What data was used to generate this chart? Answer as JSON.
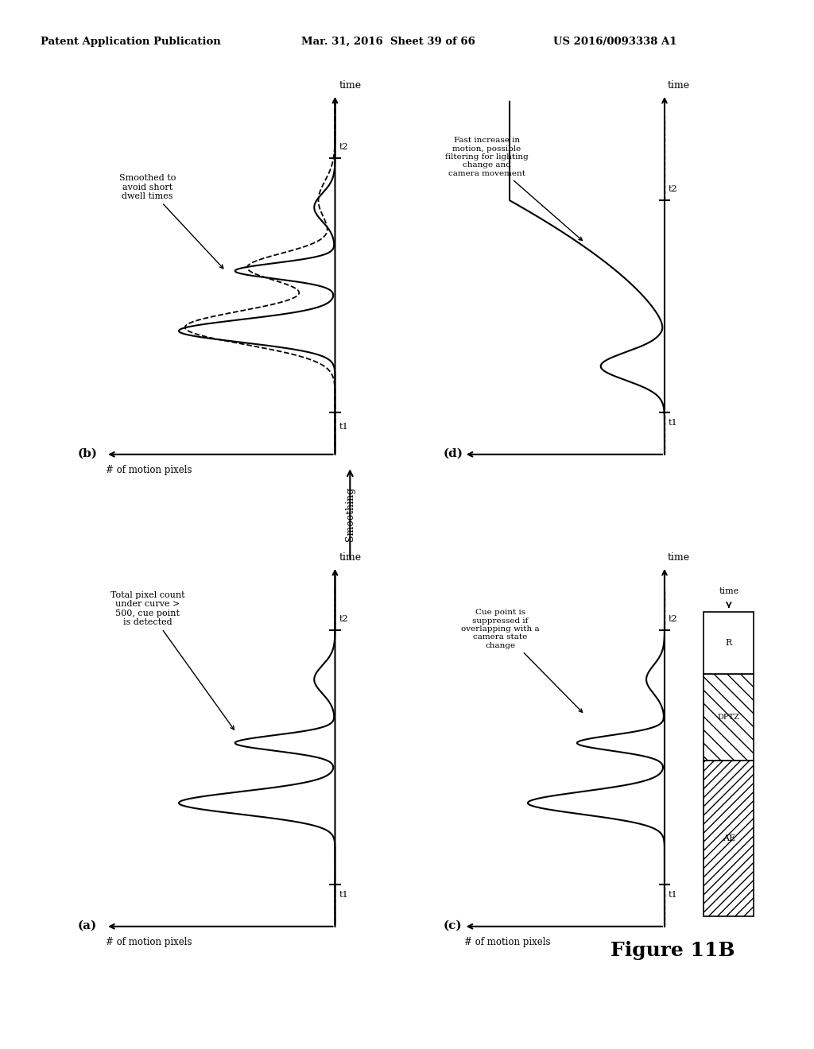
{
  "header_left": "Patent Application Publication",
  "header_center": "Mar. 31, 2016  Sheet 39 of 66",
  "header_right": "US 2016/0093338 A1",
  "figure_label": "Figure 11B",
  "bg_color": "#ffffff",
  "text_color": "#000000",
  "panel_a_label": "(a)",
  "panel_b_label": "(b)",
  "panel_c_label": "(c)",
  "panel_d_label": "(d)",
  "smoothing_label": "Smoothing",
  "ylabel": "# of motion pixels",
  "xlabel": "time",
  "panel_b_annot": "Smoothed to\navoid short\ndwell times",
  "panel_a_annot": "Total pixel count\nunder curve >\n500, cue point\nis detected",
  "panel_d_annot": "Fast increase in\nmotion, possible\nfiltering for lighting\nchange and\ncamera movement",
  "panel_c_annot": "Cue point is\nsuppressed if\noverlapping with a\ncamera state\nchange",
  "box_labels": [
    "AE",
    "DPTZ",
    "R"
  ]
}
